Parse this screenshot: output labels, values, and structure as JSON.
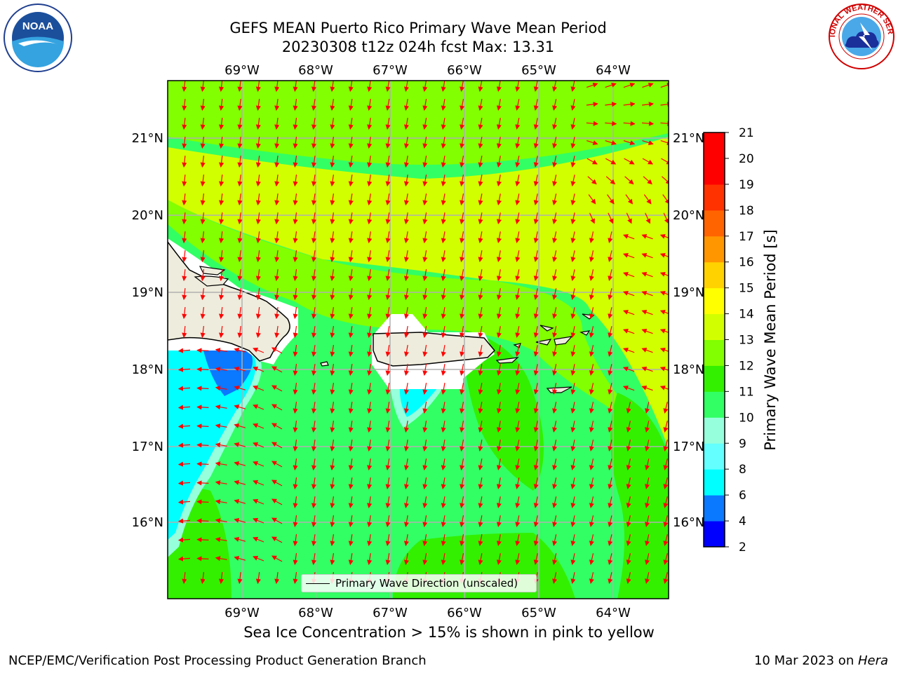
{
  "title": {
    "line1": "GEFS MEAN Puerto Rico Primary Wave Mean Period",
    "line2": "20230308 t12z 024h fcst   Max: 13.31"
  },
  "logos": {
    "left": {
      "icon": "noaa-logo",
      "text": "NOAA"
    },
    "right": {
      "icon": "national-weather-service-logo",
      "text": "NATIONAL WEATHER SERVICE"
    }
  },
  "map": {
    "lon_labels": [
      "69°W",
      "68°W",
      "67°W",
      "66°W",
      "65°W",
      "64°W"
    ],
    "lat_labels": [
      "21°N",
      "20°N",
      "19°N",
      "18°N",
      "17°N",
      "16°N"
    ],
    "extent": {
      "lon": [
        -69.99,
        -63.27
      ],
      "lat": [
        15.0,
        21.75
      ]
    },
    "land_color": "#eeecdc",
    "vector_color": "#ff0000",
    "legend_label": "Primary Wave Direction (unscaled)"
  },
  "colorbar": {
    "label": "Primary Wave Mean Period [s]",
    "ticks": [
      "2",
      "4",
      "6",
      "8",
      "9",
      "10",
      "11",
      "12",
      "13",
      "14",
      "15",
      "16",
      "17",
      "18",
      "19",
      "20",
      "21"
    ],
    "colors": [
      "#0000ff",
      "#0a78ff",
      "#00ffff",
      "#64ffff",
      "#96ffdc",
      "#32ff64",
      "#32f000",
      "#82ff00",
      "#d2ff00",
      "#ffff00",
      "#ffd200",
      "#ff9600",
      "#ff6400",
      "#ff3200",
      "#ff0000",
      "#ff0000"
    ]
  },
  "caption": "Sea Ice Concentration > 15% is shown in pink to yellow",
  "footer": {
    "left": "NCEP/EMC/Verification Post Processing Product Generation Branch",
    "right_date": "10 Mar 2023 on ",
    "right_host": "Hera"
  }
}
